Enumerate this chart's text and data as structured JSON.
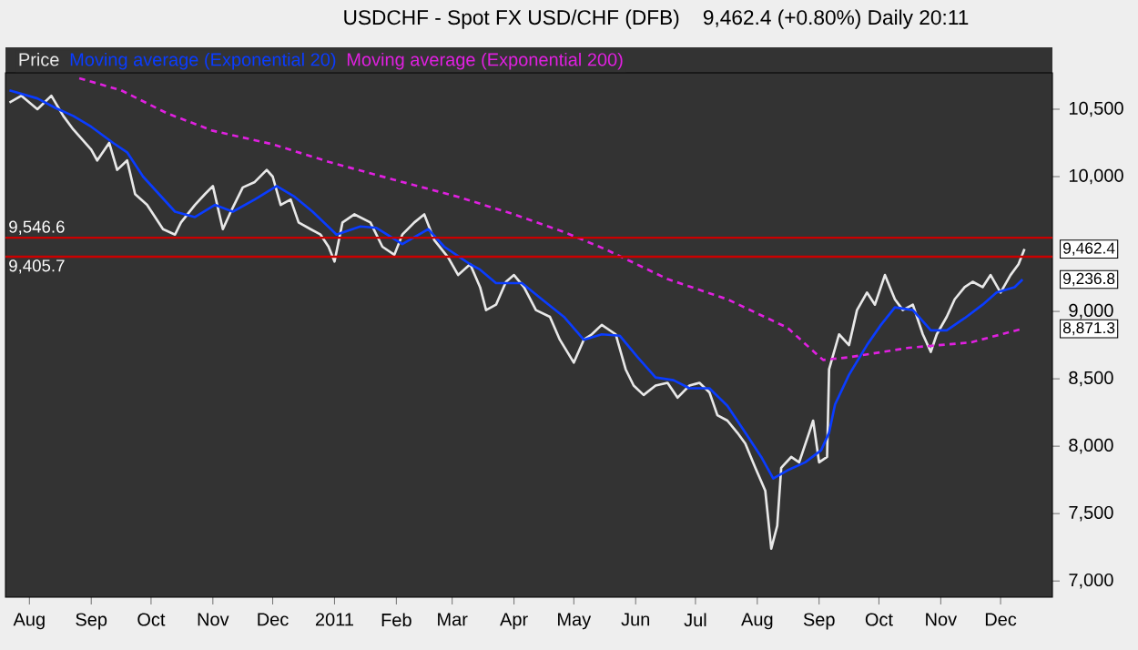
{
  "chart_data": {
    "type": "line",
    "title": "USDCHF - Spot FX USD/CHF (DFB)",
    "subtitle": "9,462.4 (+0.80%)   Daily  20:11",
    "xlim": [
      "2010-07-20",
      "2011-12-27"
    ],
    "xticks": [
      {
        "value": "2010-08-01",
        "label": "Aug"
      },
      {
        "value": "2010-09-01",
        "label": "Sep"
      },
      {
        "value": "2010-10-01",
        "label": "Oct"
      },
      {
        "value": "2010-11-01",
        "label": "Nov"
      },
      {
        "value": "2010-12-01",
        "label": "Dec"
      },
      {
        "value": "2011-01-01",
        "label": "2011"
      },
      {
        "value": "2011-02-01",
        "label": "Feb"
      },
      {
        "value": "2011-03-01",
        "label": "Mar"
      },
      {
        "value": "2011-04-01",
        "label": "Apr"
      },
      {
        "value": "2011-05-01",
        "label": "May"
      },
      {
        "value": "2011-06-01",
        "label": "Jun"
      },
      {
        "value": "2011-07-01",
        "label": "Jul"
      },
      {
        "value": "2011-08-01",
        "label": "Aug"
      },
      {
        "value": "2011-09-01",
        "label": "Sep"
      },
      {
        "value": "2011-10-01",
        "label": "Oct"
      },
      {
        "value": "2011-11-01",
        "label": "Nov"
      },
      {
        "value": "2011-12-01",
        "label": "Dec"
      }
    ],
    "ylim": [
      6880,
      10770
    ],
    "yticks": [
      {
        "value": 7000,
        "label": "7,000"
      },
      {
        "value": 7500,
        "label": "7,500"
      },
      {
        "value": 8000,
        "label": "8,000"
      },
      {
        "value": 8500,
        "label": "8,500"
      },
      {
        "value": 9000,
        "label": "9,000"
      },
      {
        "value": 10000,
        "label": "10,000"
      },
      {
        "value": 10500,
        "label": "10,500"
      }
    ],
    "legend": "top left",
    "series": [
      {
        "name": "Price",
        "color": "#e8e8e8",
        "x": [
          "2010-07-22",
          "2010-07-28",
          "2010-08-05",
          "2010-08-12",
          "2010-08-18",
          "2010-08-23",
          "2010-09-01",
          "2010-09-04",
          "2010-09-10",
          "2010-09-14",
          "2010-09-19",
          "2010-09-23",
          "2010-09-29",
          "2010-10-07",
          "2010-10-13",
          "2010-10-16",
          "2010-10-23",
          "2010-10-28",
          "2010-11-01",
          "2010-11-06",
          "2010-11-10",
          "2010-11-16",
          "2010-11-22",
          "2010-11-28",
          "2010-12-01",
          "2010-12-05",
          "2010-12-10",
          "2010-12-14",
          "2010-12-20",
          "2010-12-25",
          "2010-12-29",
          "2011-01-01",
          "2011-01-05",
          "2011-01-11",
          "2011-01-19",
          "2011-01-25",
          "2011-01-31",
          "2011-02-04",
          "2011-02-10",
          "2011-02-15",
          "2011-02-20",
          "2011-02-27",
          "2011-03-04",
          "2011-03-10",
          "2011-03-15",
          "2011-03-18",
          "2011-03-23",
          "2011-03-28",
          "2011-04-01",
          "2011-04-06",
          "2011-04-12",
          "2011-04-19",
          "2011-04-24",
          "2011-05-01",
          "2011-05-06",
          "2011-05-10",
          "2011-05-15",
          "2011-05-22",
          "2011-05-27",
          "2011-05-31",
          "2011-06-05",
          "2011-06-11",
          "2011-06-17",
          "2011-06-22",
          "2011-06-28",
          "2011-07-03",
          "2011-07-08",
          "2011-07-12",
          "2011-07-17",
          "2011-07-22",
          "2011-07-26",
          "2011-07-31",
          "2011-08-05",
          "2011-08-08",
          "2011-08-11",
          "2011-08-13",
          "2011-08-18",
          "2011-08-22",
          "2011-08-27",
          "2011-08-29",
          "2011-09-01",
          "2011-09-05",
          "2011-09-06",
          "2011-09-11",
          "2011-09-16",
          "2011-09-20",
          "2011-09-25",
          "2011-09-29",
          "2011-10-04",
          "2011-10-09",
          "2011-10-13",
          "2011-10-18",
          "2011-10-23",
          "2011-10-27",
          "2011-10-30",
          "2011-11-04",
          "2011-11-08",
          "2011-11-13",
          "2011-11-17",
          "2011-11-22",
          "2011-11-26",
          "2011-12-01",
          "2011-12-06",
          "2011-12-10",
          "2011-12-13"
        ],
        "values": [
          10550,
          10600,
          10500,
          10600,
          10450,
          10350,
          10200,
          10120,
          10250,
          10050,
          10120,
          9870,
          9790,
          9610,
          9570,
          9660,
          9790,
          9870,
          9930,
          9610,
          9740,
          9920,
          9960,
          10050,
          10000,
          9790,
          9830,
          9660,
          9610,
          9570,
          9480,
          9370,
          9660,
          9720,
          9660,
          9480,
          9420,
          9570,
          9660,
          9720,
          9530,
          9400,
          9270,
          9350,
          9180,
          9010,
          9050,
          9220,
          9270,
          9180,
          9010,
          8960,
          8790,
          8620,
          8790,
          8830,
          8900,
          8830,
          8570,
          8450,
          8380,
          8450,
          8470,
          8360,
          8450,
          8470,
          8400,
          8230,
          8190,
          8100,
          8020,
          7840,
          7670,
          7240,
          7410,
          7840,
          7920,
          7880,
          8100,
          8190,
          7880,
          7920,
          8570,
          8830,
          8750,
          9010,
          9140,
          9050,
          9270,
          9090,
          9010,
          9050,
          8830,
          8700,
          8830,
          8960,
          9090,
          9180,
          9220,
          9180,
          9270,
          9140,
          9270,
          9350,
          9462.4
        ]
      },
      {
        "name": "Moving average (Exponential 20)",
        "color": "#0a3cff",
        "x": [
          "2010-07-22",
          "2010-08-05",
          "2010-08-14",
          "2010-08-23",
          "2010-09-01",
          "2010-09-12",
          "2010-09-19",
          "2010-09-27",
          "2010-10-05",
          "2010-10-13",
          "2010-10-23",
          "2010-11-02",
          "2010-11-11",
          "2010-11-22",
          "2010-12-03",
          "2010-12-12",
          "2010-12-21",
          "2011-01-02",
          "2011-01-14",
          "2011-01-22",
          "2011-02-04",
          "2011-02-17",
          "2011-02-25",
          "2011-03-10",
          "2011-03-15",
          "2011-03-23",
          "2011-04-05",
          "2011-04-15",
          "2011-04-26",
          "2011-05-06",
          "2011-05-15",
          "2011-05-24",
          "2011-06-02",
          "2011-06-11",
          "2011-06-20",
          "2011-06-28",
          "2011-07-08",
          "2011-07-17",
          "2011-07-26",
          "2011-08-03",
          "2011-08-09",
          "2011-08-16",
          "2011-08-25",
          "2011-09-02",
          "2011-09-06",
          "2011-09-09",
          "2011-09-16",
          "2011-09-25",
          "2011-10-02",
          "2011-10-09",
          "2011-10-18",
          "2011-10-27",
          "2011-11-04",
          "2011-11-13",
          "2011-11-22",
          "2011-11-29",
          "2011-12-08",
          "2011-12-12"
        ],
        "values": [
          10640,
          10580,
          10510,
          10450,
          10370,
          10250,
          10180,
          10000,
          9870,
          9740,
          9700,
          9790,
          9740,
          9830,
          9930,
          9850,
          9740,
          9570,
          9630,
          9620,
          9500,
          9610,
          9480,
          9350,
          9310,
          9210,
          9210,
          9090,
          8960,
          8790,
          8830,
          8820,
          8660,
          8510,
          8490,
          8430,
          8430,
          8300,
          8100,
          7920,
          7760,
          7820,
          7880,
          7970,
          8100,
          8310,
          8530,
          8750,
          8900,
          9030,
          9010,
          8860,
          8860,
          8950,
          9050,
          9140,
          9180,
          9236.8
        ]
      },
      {
        "name": "Moving average (Exponential 200)",
        "color": "#e020e0",
        "line_style": "dashed",
        "x": [
          "2010-08-26",
          "2010-09-16",
          "2010-10-09",
          "2010-11-01",
          "2010-12-01",
          "2010-12-29",
          "2011-01-30",
          "2011-03-04",
          "2011-04-01",
          "2011-04-26",
          "2011-05-17",
          "2011-06-17",
          "2011-07-17",
          "2011-08-16",
          "2011-09-03",
          "2011-09-16",
          "2011-10-16",
          "2011-11-16",
          "2011-12-12"
        ],
        "values": [
          10730,
          10640,
          10470,
          10340,
          10240,
          10110,
          9980,
          9850,
          9720,
          9590,
          9460,
          9240,
          9090,
          8880,
          8640,
          8660,
          8730,
          8770,
          8871.3
        ]
      }
    ],
    "ref_lines": [
      {
        "axis": "y",
        "value": 9546.6,
        "label": "9,546.6",
        "color": "#cc0000"
      },
      {
        "axis": "y",
        "value": 9405.7,
        "label": "9,405.7",
        "color": "#cc0000"
      }
    ],
    "annotations": [
      {
        "text": "9,462.4",
        "x": "2011-12-13",
        "y": 9462.4
      },
      {
        "text": "9,236.8",
        "x": "2011-12-12",
        "y": 9236.8
      },
      {
        "text": "8,871.3",
        "x": "2011-12-12",
        "y": 8871.3
      }
    ]
  }
}
